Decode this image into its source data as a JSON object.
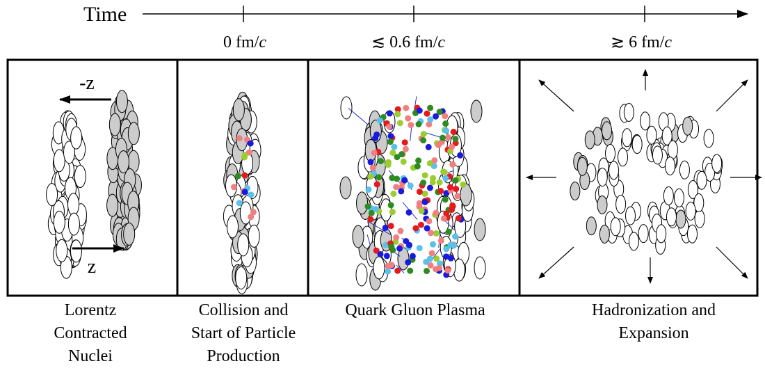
{
  "timeline": {
    "label": "Time",
    "ticks": [
      {
        "text": "0 fm/",
        "italic": "c"
      },
      {
        "text": "≲ 0.6 fm/",
        "italic": "c"
      },
      {
        "text": "≳ 6 fm/",
        "italic": "c"
      }
    ]
  },
  "panels": [
    {
      "arrow_labels": [
        "-z",
        "z"
      ],
      "caption": [
        "Lorentz",
        "Contracted",
        "Nuclei"
      ]
    },
    {
      "caption": [
        "Collision and",
        "Start of Particle",
        "Production"
      ]
    },
    {
      "caption": [
        "Quark Gluon Plasma"
      ]
    },
    {
      "caption": [
        "Hadronization and",
        "Expansion"
      ]
    }
  ]
}
